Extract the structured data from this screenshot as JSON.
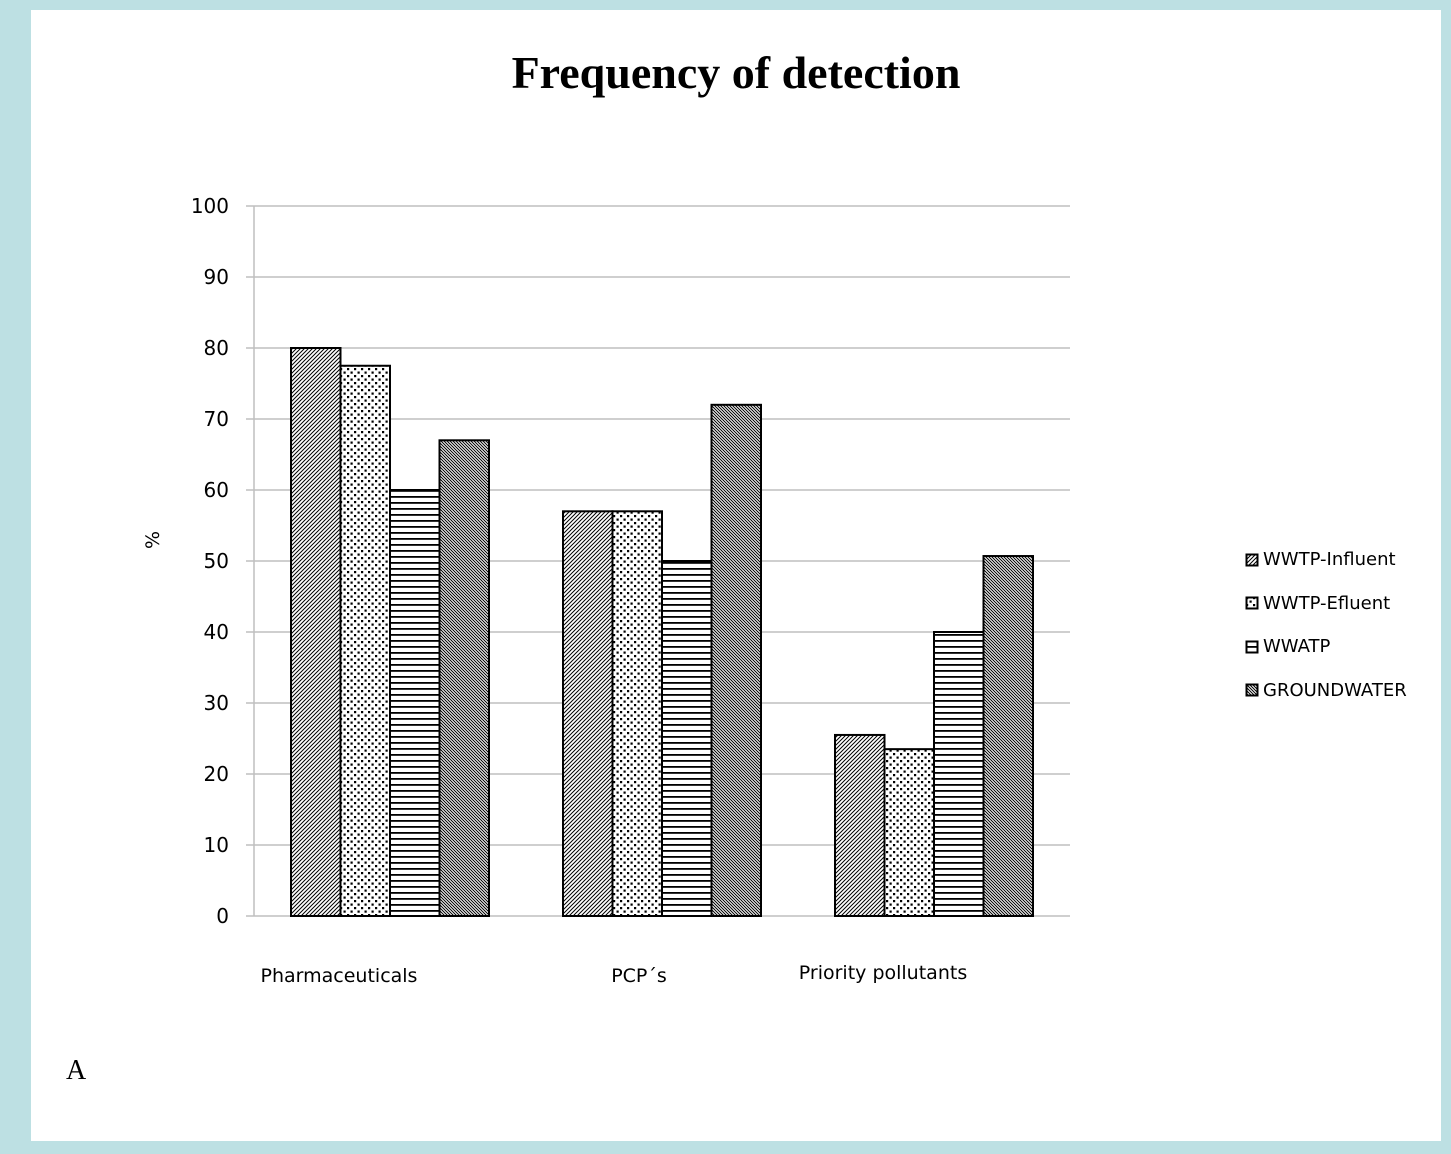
{
  "chart_data": {
    "type": "bar",
    "title": "Frequency of detection",
    "xlabel": "",
    "ylabel": "%",
    "ylim": [
      0,
      100
    ],
    "yticks": [
      0,
      10,
      20,
      30,
      40,
      50,
      60,
      70,
      80,
      90,
      100
    ],
    "categories": [
      "Pharmaceuticals",
      "PCP´s",
      "Priority pollutants"
    ],
    "series": [
      {
        "name": "WWTP-Influent",
        "values": [
          80,
          57,
          25.5
        ],
        "pattern": "diagonal-fine"
      },
      {
        "name": "WWTP-Efluent",
        "values": [
          77.5,
          57,
          23.5
        ],
        "pattern": "dots"
      },
      {
        "name": "WWATP",
        "values": [
          60,
          50,
          40
        ],
        "pattern": "horizontal-lines"
      },
      {
        "name": "GROUNDWATER",
        "values": [
          67,
          72,
          50.7
        ],
        "pattern": "diagonal-dense"
      }
    ],
    "grid": true,
    "legend_position": "right"
  },
  "panel_label": "A",
  "colors": {
    "background": "#bde0e3",
    "panel": "#ffffff",
    "gridline": "#bfbfbf",
    "bar_outline": "#000000"
  }
}
